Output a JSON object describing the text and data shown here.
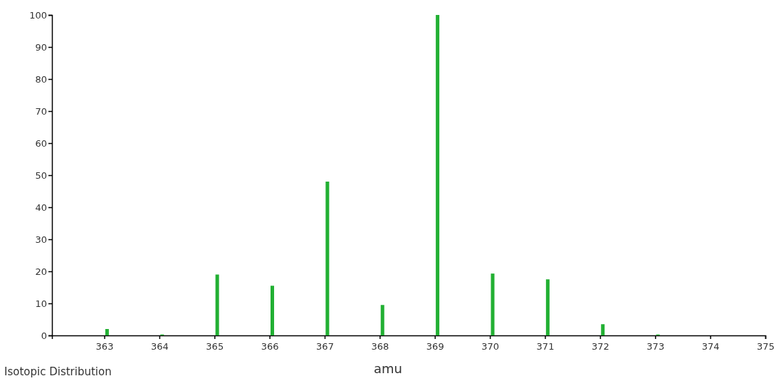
{
  "chart_data": {
    "type": "bar",
    "xlabel": "amu",
    "annotations": [
      "Isotopic Distribution"
    ],
    "x": [
      363.05,
      364.05,
      365.05,
      366.05,
      367.05,
      368.05,
      369.05,
      370.05,
      371.05,
      372.05,
      373.05
    ],
    "values": [
      2,
      0.3,
      19,
      15.5,
      48,
      9.5,
      100,
      19.3,
      17.5,
      3.5,
      0.3
    ],
    "color": "#22b033",
    "xlim": [
      362.05,
      375
    ],
    "xticks": [
      363,
      364,
      365,
      366,
      367,
      368,
      369,
      370,
      371,
      372,
      373,
      374,
      375
    ],
    "ylim": [
      0,
      100
    ],
    "yticks": [
      0,
      10,
      20,
      30,
      40,
      50,
      60,
      70,
      80,
      90,
      100
    ],
    "grid": false
  }
}
